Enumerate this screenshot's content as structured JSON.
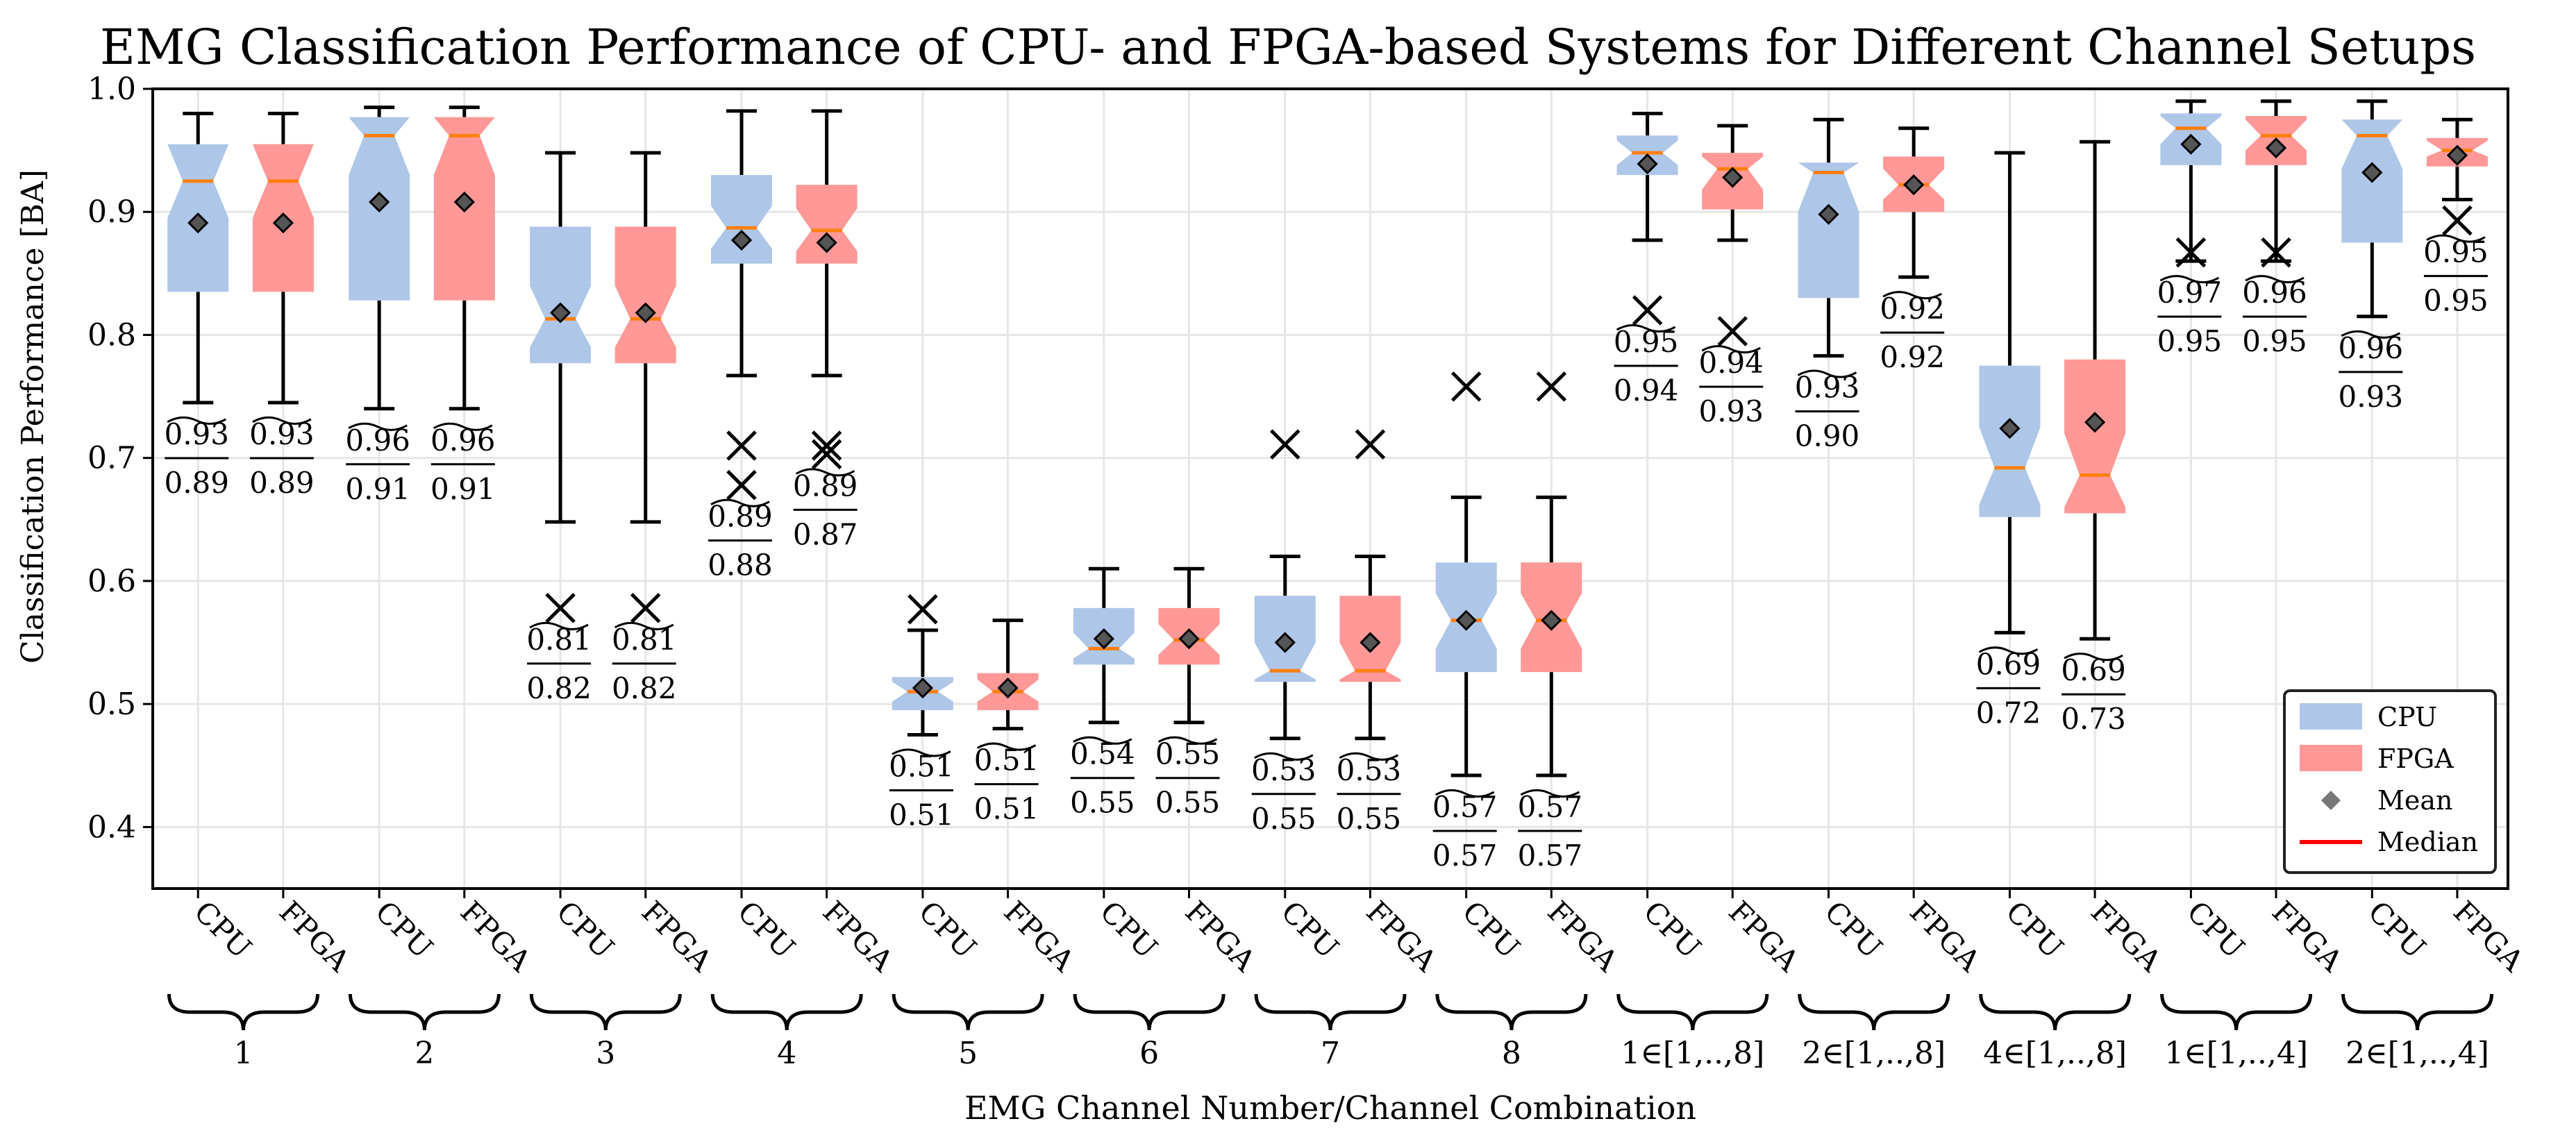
{
  "chart_data": {
    "type": "boxplot",
    "title": "EMG Classification Performance of CPU- and FPGA-based Systems for Different Channel Setups",
    "xlabel": "EMG Channel Number/Channel Combination",
    "ylabel": "Classification Performance [BA]",
    "ylim": [
      0.35,
      1.0
    ],
    "yticks": [
      0.4,
      0.5,
      0.6,
      0.7,
      0.8,
      0.9,
      1.0
    ],
    "ytick_labels": [
      "0.4",
      "0.5",
      "0.6",
      "0.7",
      "0.8",
      "0.9",
      "1.0"
    ],
    "grid": true,
    "colors": {
      "cpu": "#aec7e8",
      "fpga": "#ff9896",
      "median": "#ff7f0e",
      "mean": "#555555",
      "grid": "#e6e6e6"
    },
    "legend": {
      "position": "bottom-right",
      "entries": [
        {
          "label": "CPU",
          "kind": "cpu"
        },
        {
          "label": "FPGA",
          "kind": "fpga"
        },
        {
          "label": "Mean",
          "kind": "mean"
        },
        {
          "label": "Median",
          "kind": "median"
        }
      ]
    },
    "groups": [
      {
        "label": "1",
        "boxes": [
          {
            "system": "CPU",
            "q1": 0.835,
            "median": 0.925,
            "q3": 0.955,
            "notch_lo": 0.895,
            "notch_hi": 0.955,
            "whisker_lo": 0.745,
            "whisker_hi": 0.98,
            "mean": 0.891,
            "outliers": [],
            "label_med": "0.93",
            "label_mean": "0.89"
          },
          {
            "system": "FPGA",
            "q1": 0.835,
            "median": 0.925,
            "q3": 0.955,
            "notch_lo": 0.895,
            "notch_hi": 0.955,
            "whisker_lo": 0.745,
            "whisker_hi": 0.98,
            "mean": 0.891,
            "outliers": [],
            "label_med": "0.93",
            "label_mean": "0.89"
          }
        ]
      },
      {
        "label": "2",
        "boxes": [
          {
            "system": "CPU",
            "q1": 0.828,
            "median": 0.962,
            "q3": 0.977,
            "notch_lo": 0.93,
            "notch_hi": 0.977,
            "whisker_lo": 0.74,
            "whisker_hi": 0.985,
            "mean": 0.908,
            "outliers": [],
            "label_med": "0.96",
            "label_mean": "0.91"
          },
          {
            "system": "FPGA",
            "q1": 0.828,
            "median": 0.962,
            "q3": 0.977,
            "notch_lo": 0.93,
            "notch_hi": 0.977,
            "whisker_lo": 0.74,
            "whisker_hi": 0.985,
            "mean": 0.908,
            "outliers": [],
            "label_med": "0.96",
            "label_mean": "0.91"
          }
        ]
      },
      {
        "label": "3",
        "boxes": [
          {
            "system": "CPU",
            "q1": 0.777,
            "median": 0.813,
            "q3": 0.888,
            "notch_lo": 0.79,
            "notch_hi": 0.84,
            "whisker_lo": 0.648,
            "whisker_hi": 0.948,
            "mean": 0.818,
            "outliers": [
              0.578
            ],
            "label_med": "0.81",
            "label_mean": "0.82"
          },
          {
            "system": "FPGA",
            "q1": 0.777,
            "median": 0.813,
            "q3": 0.888,
            "notch_lo": 0.79,
            "notch_hi": 0.84,
            "whisker_lo": 0.648,
            "whisker_hi": 0.948,
            "mean": 0.818,
            "outliers": [
              0.578
            ],
            "label_med": "0.81",
            "label_mean": "0.82"
          }
        ]
      },
      {
        "label": "4",
        "boxes": [
          {
            "system": "CPU",
            "q1": 0.858,
            "median": 0.887,
            "q3": 0.93,
            "notch_lo": 0.87,
            "notch_hi": 0.905,
            "whisker_lo": 0.767,
            "whisker_hi": 0.982,
            "mean": 0.877,
            "outliers": [
              0.71,
              0.678
            ],
            "label_med": "0.89",
            "label_mean": "0.88"
          },
          {
            "system": "FPGA",
            "q1": 0.858,
            "median": 0.885,
            "q3": 0.922,
            "notch_lo": 0.868,
            "notch_hi": 0.903,
            "whisker_lo": 0.767,
            "whisker_hi": 0.982,
            "mean": 0.875,
            "outliers": [
              0.71,
              0.703
            ],
            "label_med": "0.89",
            "label_mean": "0.87"
          }
        ]
      },
      {
        "label": "5",
        "boxes": [
          {
            "system": "CPU",
            "q1": 0.495,
            "median": 0.51,
            "q3": 0.522,
            "notch_lo": 0.502,
            "notch_hi": 0.518,
            "whisker_lo": 0.475,
            "whisker_hi": 0.56,
            "mean": 0.513,
            "outliers": [
              0.577
            ],
            "label_med": "0.51",
            "label_mean": "0.51"
          },
          {
            "system": "FPGA",
            "q1": 0.495,
            "median": 0.51,
            "q3": 0.525,
            "notch_lo": 0.502,
            "notch_hi": 0.52,
            "whisker_lo": 0.48,
            "whisker_hi": 0.568,
            "mean": 0.513,
            "outliers": [],
            "label_med": "0.51",
            "label_mean": "0.51"
          }
        ]
      },
      {
        "label": "6",
        "boxes": [
          {
            "system": "CPU",
            "q1": 0.532,
            "median": 0.545,
            "q3": 0.578,
            "notch_lo": 0.537,
            "notch_hi": 0.558,
            "whisker_lo": 0.485,
            "whisker_hi": 0.61,
            "mean": 0.553,
            "outliers": [],
            "label_med": "0.54",
            "label_mean": "0.55"
          },
          {
            "system": "FPGA",
            "q1": 0.532,
            "median": 0.552,
            "q3": 0.578,
            "notch_lo": 0.54,
            "notch_hi": 0.565,
            "whisker_lo": 0.485,
            "whisker_hi": 0.61,
            "mean": 0.553,
            "outliers": [],
            "label_med": "0.55",
            "label_mean": "0.55"
          }
        ]
      },
      {
        "label": "7",
        "boxes": [
          {
            "system": "CPU",
            "q1": 0.518,
            "median": 0.527,
            "q3": 0.588,
            "notch_lo": 0.52,
            "notch_hi": 0.55,
            "whisker_lo": 0.472,
            "whisker_hi": 0.62,
            "mean": 0.55,
            "outliers": [
              0.711
            ],
            "label_med": "0.53",
            "label_mean": "0.55"
          },
          {
            "system": "FPGA",
            "q1": 0.518,
            "median": 0.527,
            "q3": 0.588,
            "notch_lo": 0.52,
            "notch_hi": 0.55,
            "whisker_lo": 0.472,
            "whisker_hi": 0.62,
            "mean": 0.55,
            "outliers": [
              0.711
            ],
            "label_med": "0.53",
            "label_mean": "0.55"
          }
        ]
      },
      {
        "label": "8",
        "boxes": [
          {
            "system": "CPU",
            "q1": 0.526,
            "median": 0.568,
            "q3": 0.615,
            "notch_lo": 0.545,
            "notch_hi": 0.59,
            "whisker_lo": 0.442,
            "whisker_hi": 0.668,
            "mean": 0.568,
            "outliers": [
              0.758
            ],
            "label_med": "0.57",
            "label_mean": "0.57"
          },
          {
            "system": "FPGA",
            "q1": 0.526,
            "median": 0.568,
            "q3": 0.615,
            "notch_lo": 0.545,
            "notch_hi": 0.59,
            "whisker_lo": 0.442,
            "whisker_hi": 0.668,
            "mean": 0.568,
            "outliers": [
              0.758
            ],
            "label_med": "0.57",
            "label_mean": "0.57"
          }
        ]
      },
      {
        "label": "1∈[1,..,8]",
        "boxes": [
          {
            "system": "CPU",
            "q1": 0.93,
            "median": 0.948,
            "q3": 0.962,
            "notch_lo": 0.938,
            "notch_hi": 0.958,
            "whisker_lo": 0.877,
            "whisker_hi": 0.98,
            "mean": 0.939,
            "outliers": [
              0.82
            ],
            "label_med": "0.95",
            "label_mean": "0.94"
          },
          {
            "system": "FPGA",
            "q1": 0.902,
            "median": 0.935,
            "q3": 0.948,
            "notch_lo": 0.918,
            "notch_hi": 0.945,
            "whisker_lo": 0.877,
            "whisker_hi": 0.97,
            "mean": 0.928,
            "outliers": [
              0.803
            ],
            "label_med": "0.94",
            "label_mean": "0.93"
          }
        ]
      },
      {
        "label": "2∈[1,..,8]",
        "boxes": [
          {
            "system": "CPU",
            "q1": 0.83,
            "median": 0.932,
            "q3": 0.94,
            "notch_lo": 0.9,
            "notch_hi": 0.94,
            "whisker_lo": 0.783,
            "whisker_hi": 0.975,
            "mean": 0.898,
            "outliers": [],
            "label_med": "0.93",
            "label_mean": "0.90"
          },
          {
            "system": "FPGA",
            "q1": 0.9,
            "median": 0.922,
            "q3": 0.945,
            "notch_lo": 0.91,
            "notch_hi": 0.935,
            "whisker_lo": 0.847,
            "whisker_hi": 0.968,
            "mean": 0.922,
            "outliers": [],
            "label_med": "0.92",
            "label_mean": "0.92"
          }
        ]
      },
      {
        "label": "4∈[1,..,8]",
        "boxes": [
          {
            "system": "CPU",
            "q1": 0.652,
            "median": 0.692,
            "q3": 0.775,
            "notch_lo": 0.662,
            "notch_hi": 0.725,
            "whisker_lo": 0.558,
            "whisker_hi": 0.948,
            "mean": 0.724,
            "outliers": [],
            "label_med": "0.69",
            "label_mean": "0.72"
          },
          {
            "system": "FPGA",
            "q1": 0.655,
            "median": 0.686,
            "q3": 0.78,
            "notch_lo": 0.66,
            "notch_hi": 0.72,
            "whisker_lo": 0.553,
            "whisker_hi": 0.957,
            "mean": 0.729,
            "outliers": [],
            "label_med": "0.69",
            "label_mean": "0.73"
          }
        ]
      },
      {
        "label": "1∈[1,..,4]",
        "boxes": [
          {
            "system": "CPU",
            "q1": 0.938,
            "median": 0.968,
            "q3": 0.98,
            "notch_lo": 0.955,
            "notch_hi": 0.978,
            "whisker_lo": 0.86,
            "whisker_hi": 0.99,
            "mean": 0.955,
            "outliers": [
              0.867
            ],
            "label_med": "0.97",
            "label_mean": "0.95"
          },
          {
            "system": "FPGA",
            "q1": 0.938,
            "median": 0.962,
            "q3": 0.978,
            "notch_lo": 0.95,
            "notch_hi": 0.975,
            "whisker_lo": 0.86,
            "whisker_hi": 0.99,
            "mean": 0.952,
            "outliers": [
              0.867
            ],
            "label_med": "0.96",
            "label_mean": "0.95"
          }
        ]
      },
      {
        "label": "2∈[1,..,4]",
        "boxes": [
          {
            "system": "CPU",
            "q1": 0.875,
            "median": 0.962,
            "q3": 0.975,
            "notch_lo": 0.935,
            "notch_hi": 0.975,
            "whisker_lo": 0.815,
            "whisker_hi": 0.99,
            "mean": 0.932,
            "outliers": [],
            "label_med": "0.96",
            "label_mean": "0.93"
          },
          {
            "system": "FPGA",
            "q1": 0.937,
            "median": 0.95,
            "q3": 0.96,
            "notch_lo": 0.945,
            "notch_hi": 0.958,
            "whisker_lo": 0.91,
            "whisker_hi": 0.975,
            "mean": 0.946,
            "outliers": [
              0.893
            ],
            "label_med": "0.95",
            "label_mean": "0.95"
          }
        ]
      }
    ]
  }
}
